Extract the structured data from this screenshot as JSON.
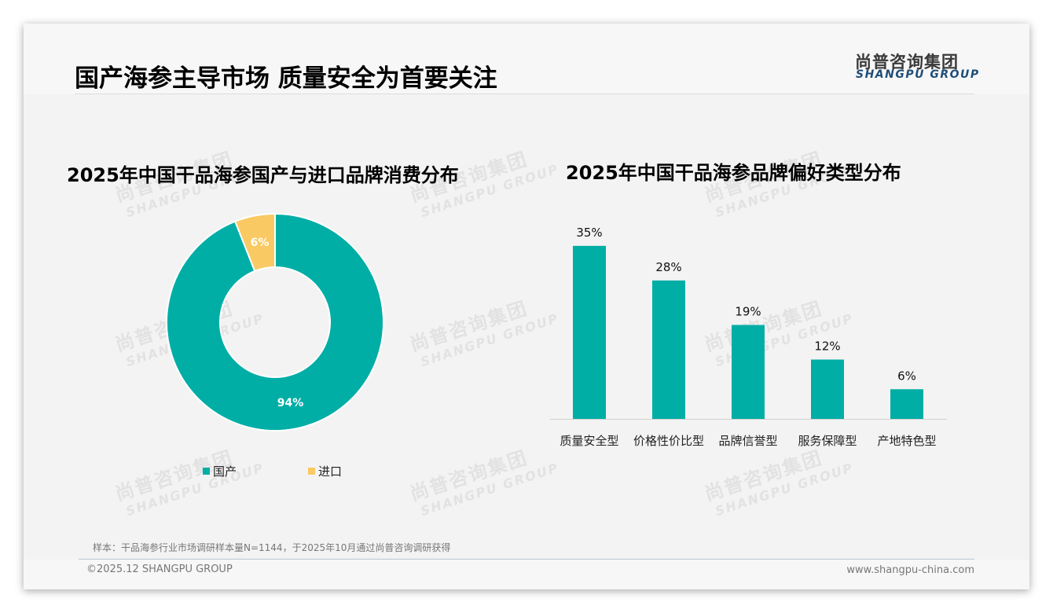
{
  "header": {
    "title": "国产海参主导市场 质量安全为首要关注",
    "logo_cn": "尚普咨询集团",
    "logo_en": "SHANGPU GROUP"
  },
  "watermark": {
    "cn": "尚普咨询集团",
    "en": "SHANGPU GROUP"
  },
  "colors": {
    "teal": "#00aea6",
    "yellow": "#f9c963",
    "logo_blue": "#1f4e79"
  },
  "legend": {
    "items": [
      {
        "label": "国产",
        "color": "#00aea6"
      },
      {
        "label": "进口",
        "color": "#f9c963"
      }
    ]
  },
  "footer": {
    "source": "样本：干品海参行业市场调研样本量N=1144，于2025年10月通过尚普咨询调研获得",
    "copyright": "©2025.12 SHANGPU GROUP",
    "website": "www.shangpu-china.com"
  },
  "chart_data": [
    {
      "type": "pie",
      "subtype": "donut",
      "title": "2025年中国干品海参国产与进口品牌消费分布",
      "categories": [
        "国产",
        "进口"
      ],
      "values": [
        94,
        6
      ],
      "labels": [
        "94%",
        "6%"
      ],
      "colors": [
        "#00aea6",
        "#f9c963"
      ],
      "legend_position": "bottom"
    },
    {
      "type": "bar",
      "title": "2025年中国干品海参品牌偏好类型分布",
      "categories": [
        "质量安全型",
        "价格性价比型",
        "品牌信誉型",
        "服务保障型",
        "产地特色型"
      ],
      "values": [
        35,
        28,
        19,
        12,
        6
      ],
      "labels": [
        "35%",
        "28%",
        "19%",
        "12%",
        "6%"
      ],
      "xlabel": "",
      "ylabel": "",
      "ylim": [
        0,
        35
      ],
      "grid": false,
      "color": "#00aea6"
    }
  ]
}
